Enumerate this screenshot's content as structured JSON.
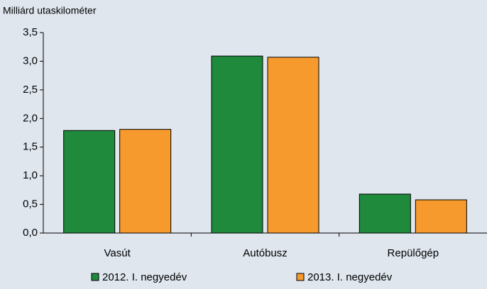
{
  "chart_data": {
    "type": "bar",
    "y_axis_label": "Milliárd utaskilométer",
    "categories": [
      "Vasút",
      "Autóbusz",
      "Repülőgép"
    ],
    "series": [
      {
        "name": "2012. I. negyedév",
        "color": "#1f8a3c",
        "values": [
          1.79,
          3.09,
          0.68
        ]
      },
      {
        "name": "2013. I. negyedév",
        "color": "#f79a2e",
        "values": [
          1.81,
          3.07,
          0.58
        ]
      }
    ],
    "ylim": [
      0,
      3.5
    ],
    "yticks": [
      {
        "value": 0,
        "label": "0,0"
      },
      {
        "value": 0.5,
        "label": "0,5"
      },
      {
        "value": 1,
        "label": "1,0"
      },
      {
        "value": 1.5,
        "label": "1,5"
      },
      {
        "value": 2,
        "label": "2,0"
      },
      {
        "value": 2.5,
        "label": "2,5"
      },
      {
        "value": 3,
        "label": "3,0"
      },
      {
        "value": 3.5,
        "label": "3,5"
      }
    ],
    "grid": false
  }
}
